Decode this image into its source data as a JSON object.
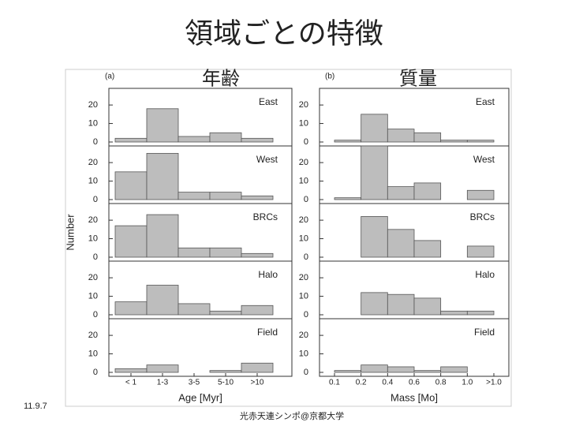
{
  "slide": {
    "title": "領域ごとの特徴",
    "labels": [
      "年齢",
      "質量"
    ],
    "date": "11.9.7",
    "footer": "光赤天連シンポ@京都大学"
  },
  "chart_data": [
    {
      "type": "bar",
      "panel_label": "(a)",
      "x_label": "Age [Myr]",
      "y_label": "Number",
      "categories": [
        "< 1",
        "1-3",
        "3-5",
        "5-10",
        ">10"
      ],
      "ylim": [
        0,
        29
      ],
      "yticks": [
        0,
        10,
        20
      ],
      "color": "#bdbdbd",
      "series": [
        {
          "name": "East",
          "values": [
            2,
            18,
            3,
            5,
            2
          ]
        },
        {
          "name": "West",
          "values": [
            15,
            25,
            4,
            4,
            2
          ]
        },
        {
          "name": "BRCs",
          "values": [
            17,
            23,
            5,
            5,
            2
          ]
        },
        {
          "name": "Halo",
          "values": [
            7,
            16,
            6,
            2,
            5
          ]
        },
        {
          "name": "Field",
          "values": [
            2,
            4,
            0,
            1,
            5
          ]
        }
      ]
    },
    {
      "type": "histogram",
      "panel_label": "(b)",
      "x_label": "Mass [Mo]",
      "bins": [
        "0.1",
        "0.2",
        "0.4",
        "0.6",
        "0.8",
        "1.0",
        ">1.0"
      ],
      "ylim": [
        0,
        29
      ],
      "yticks": [
        0,
        10,
        20
      ],
      "color": "#bdbdbd",
      "series": [
        {
          "name": "East",
          "values": [
            1,
            15,
            7,
            5,
            1,
            1
          ]
        },
        {
          "name": "West",
          "values": [
            1,
            29,
            7,
            9,
            0,
            5
          ]
        },
        {
          "name": "BRCs",
          "values": [
            0,
            22,
            15,
            9,
            0,
            6
          ]
        },
        {
          "name": "Halo",
          "values": [
            0,
            12,
            11,
            9,
            2,
            2
          ]
        },
        {
          "name": "Field",
          "values": [
            1,
            4,
            3,
            1,
            3,
            0
          ]
        }
      ]
    }
  ]
}
